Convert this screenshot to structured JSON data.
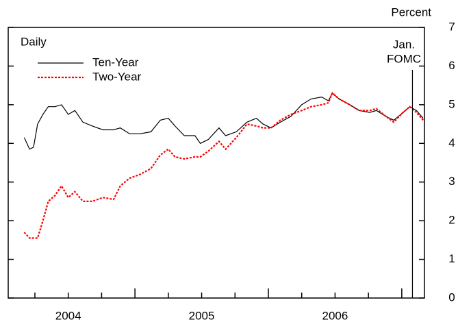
{
  "chart_data": {
    "type": "line",
    "y_label": "Percent",
    "annotation": "Daily",
    "x": [
      2004.17,
      2004.21,
      2004.24,
      2004.27,
      2004.31,
      2004.35,
      2004.4,
      2004.45,
      2004.5,
      2004.55,
      2004.61,
      2004.68,
      2004.76,
      2004.84,
      2004.89,
      2004.96,
      2005.04,
      2005.12,
      2005.19,
      2005.25,
      2005.3,
      2005.37,
      2005.45,
      2005.49,
      2005.55,
      2005.63,
      2005.68,
      2005.76,
      2005.84,
      2005.91,
      2005.96,
      2006.02,
      2006.09,
      2006.17,
      2006.25,
      2006.32,
      2006.4,
      2006.45,
      2006.48,
      2006.53,
      2006.61,
      2006.68,
      2006.76,
      2006.81,
      2006.88,
      2006.94,
      2007.01,
      2007.06,
      2007.11,
      2007.16
    ],
    "series": [
      {
        "name": "Ten-Year",
        "color": "#000000",
        "dash": false,
        "values": [
          4.15,
          3.85,
          3.9,
          4.5,
          4.75,
          4.95,
          4.95,
          5.0,
          4.75,
          4.85,
          4.55,
          4.45,
          4.35,
          4.35,
          4.4,
          4.25,
          4.25,
          4.3,
          4.6,
          4.65,
          4.45,
          4.2,
          4.2,
          4.0,
          4.1,
          4.4,
          4.2,
          4.3,
          4.55,
          4.65,
          4.5,
          4.4,
          4.55,
          4.7,
          5.0,
          5.15,
          5.2,
          5.1,
          5.3,
          5.15,
          5.0,
          4.85,
          4.8,
          4.85,
          4.7,
          4.6,
          4.8,
          4.95,
          4.85,
          4.65
        ]
      },
      {
        "name": "Two-Year",
        "color": "#ff0000",
        "dash": true,
        "values": [
          1.7,
          1.55,
          1.55,
          1.55,
          2.0,
          2.5,
          2.65,
          2.9,
          2.6,
          2.75,
          2.5,
          2.5,
          2.6,
          2.55,
          2.9,
          3.1,
          3.2,
          3.35,
          3.7,
          3.85,
          3.65,
          3.6,
          3.65,
          3.65,
          3.8,
          4.05,
          3.85,
          4.15,
          4.5,
          4.45,
          4.4,
          4.4,
          4.6,
          4.75,
          4.85,
          4.95,
          5.0,
          5.05,
          5.3,
          5.15,
          5.0,
          4.85,
          4.85,
          4.9,
          4.7,
          4.55,
          4.8,
          4.95,
          4.8,
          4.6
        ]
      }
    ],
    "event_line": {
      "x": 2007.08,
      "label": [
        "Jan.",
        "FOMC"
      ]
    },
    "xlim": [
      2004.05,
      2007.17
    ],
    "xticks": [
      {
        "value": 2004.5,
        "label": "2004"
      },
      {
        "value": 2005.5,
        "label": "2005"
      },
      {
        "value": 2006.5,
        "label": "2006"
      }
    ],
    "ylim": [
      0,
      7
    ],
    "yticks": [
      0,
      1,
      2,
      3,
      4,
      5,
      6,
      7
    ],
    "grid": false
  }
}
